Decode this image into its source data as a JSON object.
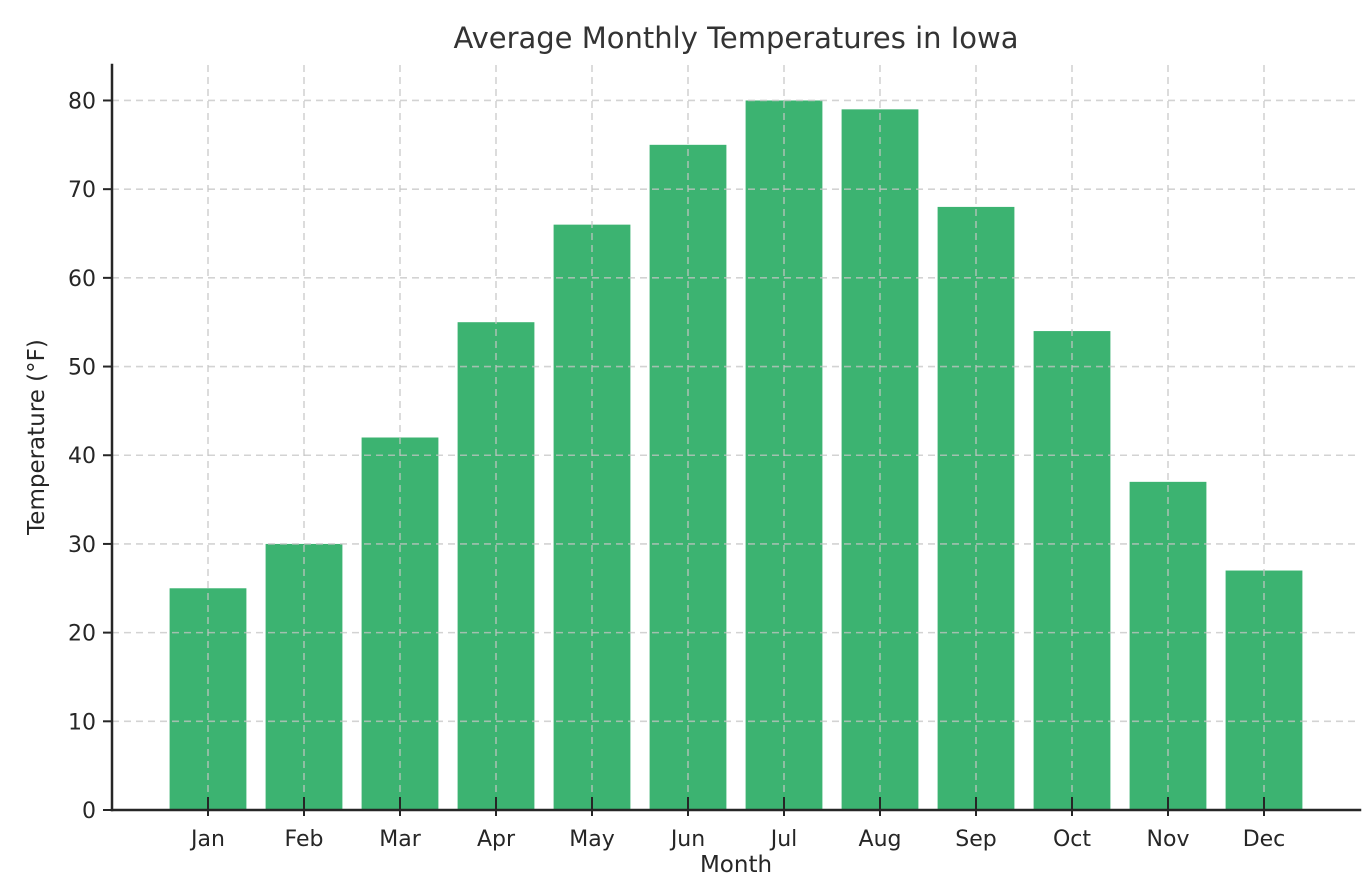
{
  "chart_data": {
    "type": "bar",
    "title": "Average Monthly Temperatures in Iowa",
    "xlabel": "Month",
    "ylabel": "Temperature (°F)",
    "categories": [
      "Jan",
      "Feb",
      "Mar",
      "Apr",
      "May",
      "Jun",
      "Jul",
      "Aug",
      "Sep",
      "Oct",
      "Nov",
      "Dec"
    ],
    "values": [
      25,
      30,
      42,
      55,
      66,
      75,
      80,
      79,
      68,
      54,
      37,
      27
    ],
    "ylim": [
      0,
      84
    ],
    "yticks": [
      0,
      10,
      20,
      30,
      40,
      50,
      60,
      70,
      80
    ],
    "bar_color": "#3CB371",
    "bar_width_fraction": 0.8,
    "grid": "dashed, both axes, drawn above bars",
    "legend": "none"
  },
  "colors": {
    "background": "#ffffff",
    "spine": "#262626",
    "tick_text": "#262626",
    "title_text": "#333333",
    "grid": "#c4c4c4"
  }
}
